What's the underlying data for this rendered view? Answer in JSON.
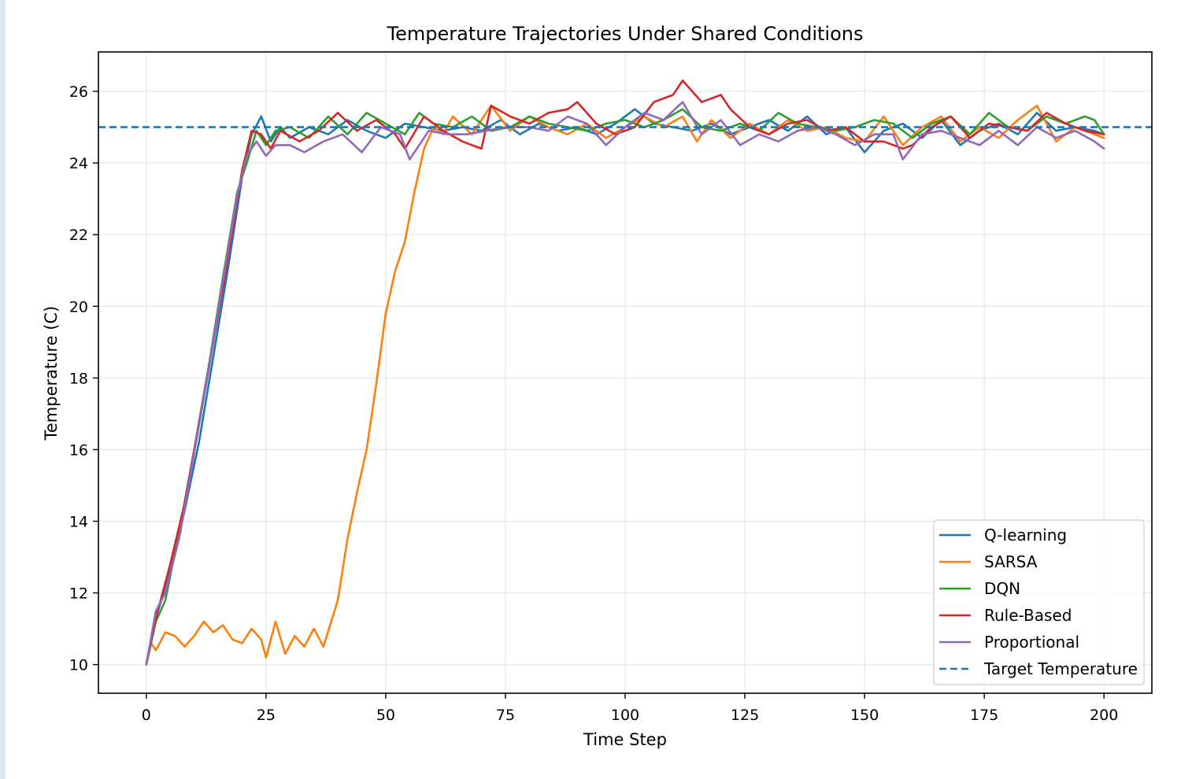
{
  "chart_data": {
    "type": "line",
    "title": "Temperature Trajectories Under Shared Conditions",
    "xlabel": "Time Step",
    "ylabel": "Temperature (C)",
    "xlim": [
      -10,
      210
    ],
    "ylim": [
      9.2,
      27.1
    ],
    "xticks": [
      0,
      25,
      50,
      75,
      100,
      125,
      150,
      175,
      200
    ],
    "yticks": [
      10,
      12,
      14,
      16,
      18,
      20,
      22,
      24,
      26
    ],
    "grid": true,
    "legend_position": "lower-right",
    "target_temperature": 25,
    "series": [
      {
        "name": "Q-learning",
        "color": "#1f77b4",
        "points": [
          [
            0,
            10
          ],
          [
            2,
            11.3
          ],
          [
            5,
            12.6
          ],
          [
            8,
            14.3
          ],
          [
            11,
            16.2
          ],
          [
            14,
            18.6
          ],
          [
            17,
            21.0
          ],
          [
            20,
            23.6
          ],
          [
            22,
            24.8
          ],
          [
            24,
            25.3
          ],
          [
            26,
            24.6
          ],
          [
            28,
            25.0
          ],
          [
            30,
            24.7
          ],
          [
            34,
            25.0
          ],
          [
            38,
            24.8
          ],
          [
            42,
            25.2
          ],
          [
            46,
            24.9
          ],
          [
            50,
            24.7
          ],
          [
            54,
            25.1
          ],
          [
            58,
            25.0
          ],
          [
            62,
            24.9
          ],
          [
            66,
            25.0
          ],
          [
            70,
            24.9
          ],
          [
            74,
            25.2
          ],
          [
            78,
            24.8
          ],
          [
            82,
            25.1
          ],
          [
            86,
            24.9
          ],
          [
            90,
            25.0
          ],
          [
            94,
            24.8
          ],
          [
            98,
            25.1
          ],
          [
            102,
            25.5
          ],
          [
            106,
            25.1
          ],
          [
            110,
            25.0
          ],
          [
            114,
            24.9
          ],
          [
            118,
            25.1
          ],
          [
            122,
            24.8
          ],
          [
            126,
            25.0
          ],
          [
            130,
            25.2
          ],
          [
            134,
            24.9
          ],
          [
            138,
            25.3
          ],
          [
            142,
            24.8
          ],
          [
            146,
            25.0
          ],
          [
            150,
            24.3
          ],
          [
            154,
            24.9
          ],
          [
            158,
            25.1
          ],
          [
            162,
            24.7
          ],
          [
            166,
            25.2
          ],
          [
            170,
            24.5
          ],
          [
            174,
            24.9
          ],
          [
            178,
            25.1
          ],
          [
            182,
            24.8
          ],
          [
            186,
            25.4
          ],
          [
            190,
            24.9
          ],
          [
            194,
            25.0
          ],
          [
            198,
            24.9
          ],
          [
            200,
            24.8
          ]
        ]
      },
      {
        "name": "SARSA",
        "color": "#ff7f0e",
        "points": [
          [
            0,
            10
          ],
          [
            1,
            10.6
          ],
          [
            2,
            10.4
          ],
          [
            4,
            10.9
          ],
          [
            6,
            10.8
          ],
          [
            8,
            10.5
          ],
          [
            10,
            10.8
          ],
          [
            12,
            11.2
          ],
          [
            14,
            10.9
          ],
          [
            16,
            11.1
          ],
          [
            18,
            10.7
          ],
          [
            20,
            10.6
          ],
          [
            22,
            11.0
          ],
          [
            24,
            10.7
          ],
          [
            25,
            10.2
          ],
          [
            27,
            11.2
          ],
          [
            29,
            10.3
          ],
          [
            31,
            10.8
          ],
          [
            33,
            10.5
          ],
          [
            35,
            11.0
          ],
          [
            37,
            10.5
          ],
          [
            40,
            11.8
          ],
          [
            42,
            13.5
          ],
          [
            44,
            14.8
          ],
          [
            46,
            16.0
          ],
          [
            48,
            17.8
          ],
          [
            50,
            19.8
          ],
          [
            52,
            21.0
          ],
          [
            54,
            21.8
          ],
          [
            56,
            23.2
          ],
          [
            58,
            24.4
          ],
          [
            60,
            25.0
          ],
          [
            62,
            24.8
          ],
          [
            64,
            25.3
          ],
          [
            68,
            24.8
          ],
          [
            72,
            25.6
          ],
          [
            76,
            24.9
          ],
          [
            80,
            25.3
          ],
          [
            84,
            25.0
          ],
          [
            88,
            24.8
          ],
          [
            92,
            25.1
          ],
          [
            96,
            24.7
          ],
          [
            100,
            25.0
          ],
          [
            104,
            25.3
          ],
          [
            108,
            25.0
          ],
          [
            112,
            25.3
          ],
          [
            115,
            24.6
          ],
          [
            118,
            25.2
          ],
          [
            122,
            24.7
          ],
          [
            126,
            25.1
          ],
          [
            130,
            24.8
          ],
          [
            134,
            25.2
          ],
          [
            138,
            24.9
          ],
          [
            142,
            25.0
          ],
          [
            146,
            24.7
          ],
          [
            150,
            24.6
          ],
          [
            154,
            25.3
          ],
          [
            158,
            24.5
          ],
          [
            162,
            25.0
          ],
          [
            166,
            25.3
          ],
          [
            170,
            24.6
          ],
          [
            174,
            25.0
          ],
          [
            178,
            24.7
          ],
          [
            182,
            25.2
          ],
          [
            186,
            25.6
          ],
          [
            190,
            24.6
          ],
          [
            194,
            25.0
          ],
          [
            198,
            24.8
          ],
          [
            200,
            24.7
          ]
        ]
      },
      {
        "name": "DQN",
        "color": "#2ca02c",
        "points": [
          [
            0,
            10
          ],
          [
            2,
            11.2
          ],
          [
            4,
            11.8
          ],
          [
            7,
            13.8
          ],
          [
            10,
            16.0
          ],
          [
            13,
            18.3
          ],
          [
            16,
            20.8
          ],
          [
            19,
            23.2
          ],
          [
            21,
            24.0
          ],
          [
            23,
            24.9
          ],
          [
            25,
            24.5
          ],
          [
            27,
            24.9
          ],
          [
            30,
            25.0
          ],
          [
            34,
            24.7
          ],
          [
            38,
            25.3
          ],
          [
            42,
            24.8
          ],
          [
            46,
            25.4
          ],
          [
            50,
            25.1
          ],
          [
            54,
            24.8
          ],
          [
            57,
            25.4
          ],
          [
            60,
            25.1
          ],
          [
            64,
            25.0
          ],
          [
            68,
            25.3
          ],
          [
            72,
            24.9
          ],
          [
            76,
            25.0
          ],
          [
            80,
            25.3
          ],
          [
            84,
            25.1
          ],
          [
            88,
            25.0
          ],
          [
            92,
            24.9
          ],
          [
            96,
            25.1
          ],
          [
            100,
            25.2
          ],
          [
            104,
            25.0
          ],
          [
            108,
            25.2
          ],
          [
            112,
            25.5
          ],
          [
            116,
            25.0
          ],
          [
            120,
            24.9
          ],
          [
            124,
            25.1
          ],
          [
            128,
            24.9
          ],
          [
            132,
            25.4
          ],
          [
            136,
            25.1
          ],
          [
            140,
            25.0
          ],
          [
            144,
            24.9
          ],
          [
            148,
            25.0
          ],
          [
            152,
            25.2
          ],
          [
            156,
            25.1
          ],
          [
            160,
            24.7
          ],
          [
            164,
            25.1
          ],
          [
            168,
            25.3
          ],
          [
            172,
            24.8
          ],
          [
            176,
            25.4
          ],
          [
            180,
            25.0
          ],
          [
            184,
            24.9
          ],
          [
            188,
            25.3
          ],
          [
            192,
            25.1
          ],
          [
            196,
            25.3
          ],
          [
            198,
            25.2
          ],
          [
            200,
            24.8
          ]
        ]
      },
      {
        "name": "Rule-Based",
        "color": "#d62728",
        "points": [
          [
            0,
            10
          ],
          [
            2,
            11.3
          ],
          [
            5,
            12.8
          ],
          [
            8,
            14.5
          ],
          [
            11,
            16.7
          ],
          [
            14,
            19.0
          ],
          [
            17,
            21.3
          ],
          [
            20,
            23.8
          ],
          [
            22,
            24.9
          ],
          [
            24,
            24.8
          ],
          [
            26,
            24.4
          ],
          [
            28,
            24.9
          ],
          [
            32,
            24.6
          ],
          [
            36,
            24.9
          ],
          [
            40,
            25.4
          ],
          [
            44,
            24.9
          ],
          [
            48,
            25.2
          ],
          [
            52,
            24.8
          ],
          [
            54,
            24.4
          ],
          [
            58,
            25.3
          ],
          [
            62,
            24.9
          ],
          [
            66,
            24.6
          ],
          [
            70,
            24.4
          ],
          [
            72,
            25.6
          ],
          [
            76,
            25.3
          ],
          [
            80,
            25.1
          ],
          [
            84,
            25.4
          ],
          [
            88,
            25.5
          ],
          [
            90,
            25.7
          ],
          [
            94,
            25.1
          ],
          [
            98,
            24.8
          ],
          [
            102,
            25.0
          ],
          [
            106,
            25.7
          ],
          [
            110,
            25.9
          ],
          [
            112,
            26.3
          ],
          [
            116,
            25.7
          ],
          [
            120,
            25.9
          ],
          [
            122,
            25.5
          ],
          [
            126,
            25.0
          ],
          [
            130,
            24.8
          ],
          [
            134,
            25.1
          ],
          [
            138,
            25.2
          ],
          [
            142,
            24.9
          ],
          [
            146,
            25.0
          ],
          [
            150,
            24.6
          ],
          [
            154,
            24.6
          ],
          [
            158,
            24.4
          ],
          [
            160,
            24.5
          ],
          [
            164,
            25.0
          ],
          [
            168,
            25.3
          ],
          [
            172,
            24.7
          ],
          [
            176,
            25.1
          ],
          [
            180,
            25.0
          ],
          [
            184,
            24.9
          ],
          [
            188,
            25.4
          ],
          [
            192,
            25.1
          ],
          [
            196,
            24.9
          ],
          [
            200,
            24.8
          ]
        ]
      },
      {
        "name": "Proportional",
        "color": "#9467bd",
        "points": [
          [
            0,
            10
          ],
          [
            2,
            11.5
          ],
          [
            4,
            12.0
          ],
          [
            7,
            13.6
          ],
          [
            10,
            15.9
          ],
          [
            13,
            18.2
          ],
          [
            16,
            20.7
          ],
          [
            19,
            23.1
          ],
          [
            21,
            24.2
          ],
          [
            23,
            24.6
          ],
          [
            25,
            24.2
          ],
          [
            27,
            24.5
          ],
          [
            30,
            24.5
          ],
          [
            33,
            24.3
          ],
          [
            37,
            24.6
          ],
          [
            41,
            24.8
          ],
          [
            45,
            24.3
          ],
          [
            49,
            25.0
          ],
          [
            53,
            24.8
          ],
          [
            55,
            24.1
          ],
          [
            59,
            24.9
          ],
          [
            63,
            24.8
          ],
          [
            67,
            24.8
          ],
          [
            71,
            24.9
          ],
          [
            75,
            25.0
          ],
          [
            80,
            25.0
          ],
          [
            84,
            24.9
          ],
          [
            88,
            25.3
          ],
          [
            92,
            25.1
          ],
          [
            96,
            24.5
          ],
          [
            100,
            25.0
          ],
          [
            104,
            25.4
          ],
          [
            108,
            25.2
          ],
          [
            112,
            25.7
          ],
          [
            116,
            24.8
          ],
          [
            120,
            25.2
          ],
          [
            124,
            24.5
          ],
          [
            128,
            24.8
          ],
          [
            132,
            24.6
          ],
          [
            136,
            24.9
          ],
          [
            140,
            25.0
          ],
          [
            144,
            24.8
          ],
          [
            148,
            24.5
          ],
          [
            152,
            24.8
          ],
          [
            156,
            24.8
          ],
          [
            158,
            24.1
          ],
          [
            162,
            24.8
          ],
          [
            166,
            24.9
          ],
          [
            170,
            24.7
          ],
          [
            174,
            24.5
          ],
          [
            178,
            24.9
          ],
          [
            182,
            24.5
          ],
          [
            186,
            25.0
          ],
          [
            190,
            24.7
          ],
          [
            194,
            24.9
          ],
          [
            198,
            24.6
          ],
          [
            200,
            24.4
          ]
        ]
      },
      {
        "name": "Target Temperature",
        "color": "#1f77b4",
        "dashed": true,
        "points": [
          [
            -10,
            25
          ],
          [
            210,
            25
          ]
        ]
      }
    ]
  }
}
